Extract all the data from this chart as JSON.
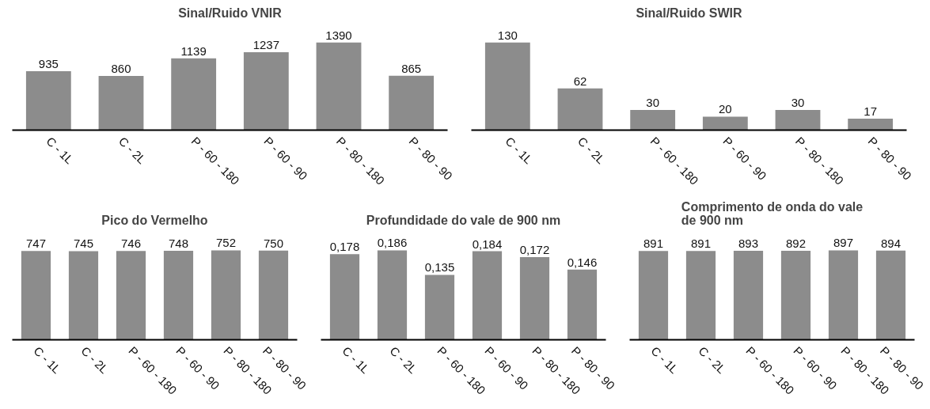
{
  "chart_data": [
    {
      "type": "bar",
      "title": "Sinal/Ruido VNIR",
      "categories": [
        "C - 1L",
        "C - 2L",
        "P - 60 - 180",
        "P - 60 - 90",
        "P - 80 - 180",
        "P - 80 - 90"
      ],
      "values": [
        935,
        860,
        1139,
        1237,
        1390,
        865
      ],
      "color": "#8c8c8c",
      "data_labels": true,
      "tick_labels": "x",
      "grid": false
    },
    {
      "type": "bar",
      "title": "Sinal/Ruido SWIR",
      "categories": [
        "C - 1L",
        "C - 2L",
        "P - 60 - 180",
        "P - 60 - 90",
        "P - 80 - 180",
        "P - 80 - 90"
      ],
      "values": [
        130,
        62,
        30,
        20,
        30,
        17
      ],
      "color": "#8c8c8c",
      "data_labels": true,
      "tick_labels": "x",
      "grid": false
    },
    {
      "type": "bar",
      "title": "Pico do Vermelho",
      "categories": [
        "C - 1L",
        "C - 2L",
        "P - 60 - 180",
        "P - 60 - 90",
        "P - 80 - 180",
        "P - 80 - 90"
      ],
      "values": [
        747,
        745,
        746,
        748,
        752,
        750
      ],
      "color": "#8c8c8c",
      "data_labels": true,
      "tick_labels": "x",
      "grid": false
    },
    {
      "type": "bar",
      "title": "Profundidade do vale de 900 nm",
      "categories": [
        "C - 1L",
        "C - 2L",
        "P - 60 - 180",
        "P - 60 - 90",
        "P - 80 - 180",
        "P - 80 - 90"
      ],
      "values": [
        0.178,
        0.186,
        0.135,
        0.184,
        0.172,
        0.146
      ],
      "value_labels": [
        "0,178",
        "0,186",
        "0,135",
        "0,184",
        "0,172",
        "0,146"
      ],
      "color": "#8c8c8c",
      "tick_labels": "x",
      "grid": false
    },
    {
      "type": "bar",
      "title": "Comprimento de onda do vale\nde 900 nm",
      "categories": [
        "C - 1L",
        "C - 2L",
        "P - 60 - 180",
        "P - 60 - 90",
        "P - 80 - 180",
        "P - 80 - 90"
      ],
      "values": [
        891,
        891,
        893,
        892,
        897,
        894
      ],
      "color": "#8c8c8c",
      "data_labels": true,
      "tick_labels": "x",
      "grid": false
    }
  ]
}
